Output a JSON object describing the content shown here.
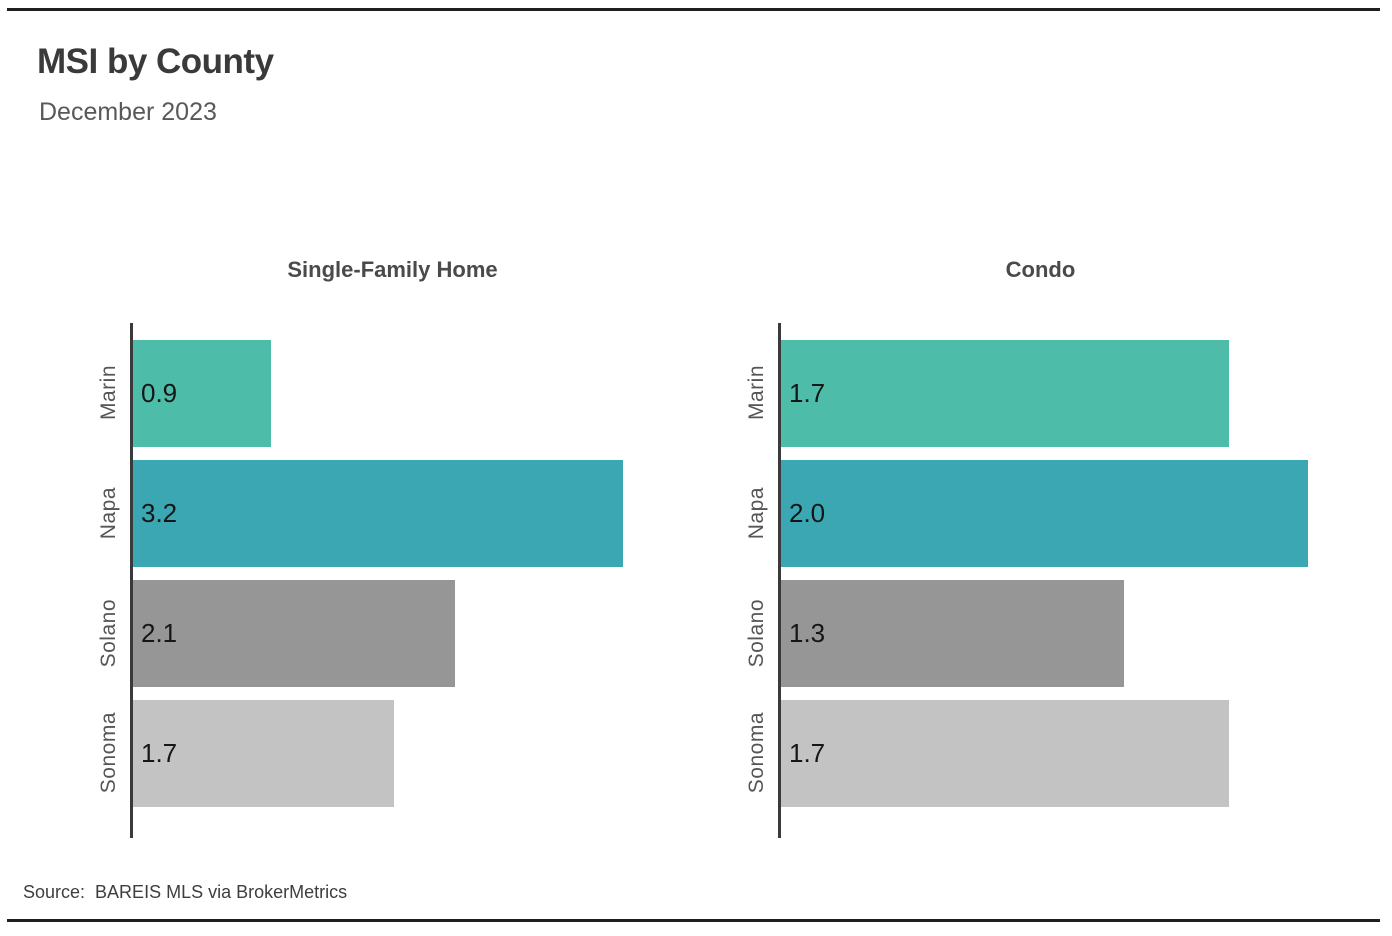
{
  "header": {
    "title": "MSI by County",
    "subtitle": "December 2023"
  },
  "source": {
    "label": "Source:",
    "text": "BAREIS MLS via BrokerMetrics"
  },
  "colors": {
    "marin": "#4DBCA9",
    "napa": "#3AA7B2",
    "solano": "#969696",
    "sonoma": "#C3C3C3",
    "axis": "#3a3a3a",
    "rule": "#1f1f1f"
  },
  "chart_data": [
    {
      "type": "bar",
      "orientation": "horizontal",
      "title": "Single-Family Home",
      "categories": [
        "Marin",
        "Napa",
        "Solano",
        "Sonoma"
      ],
      "values": [
        0.9,
        3.2,
        2.1,
        1.7
      ],
      "value_labels": [
        "0.9",
        "3.2",
        "2.1",
        "1.7"
      ],
      "bar_colors": [
        "#4DBCA9",
        "#3AA7B2",
        "#969696",
        "#C3C3C3"
      ],
      "xlim": [
        0,
        3.7
      ],
      "grid": false,
      "legend": false
    },
    {
      "type": "bar",
      "orientation": "horizontal",
      "title": "Condo",
      "categories": [
        "Marin",
        "Napa",
        "Solano",
        "Sonoma"
      ],
      "values": [
        1.7,
        2.0,
        1.3,
        1.7
      ],
      "value_labels": [
        "1.7",
        "2.0",
        "1.3",
        "1.7"
      ],
      "bar_colors": [
        "#4DBCA9",
        "#3AA7B2",
        "#969696",
        "#C3C3C3"
      ],
      "xlim": [
        0,
        2.15
      ],
      "grid": false,
      "legend": false
    }
  ]
}
